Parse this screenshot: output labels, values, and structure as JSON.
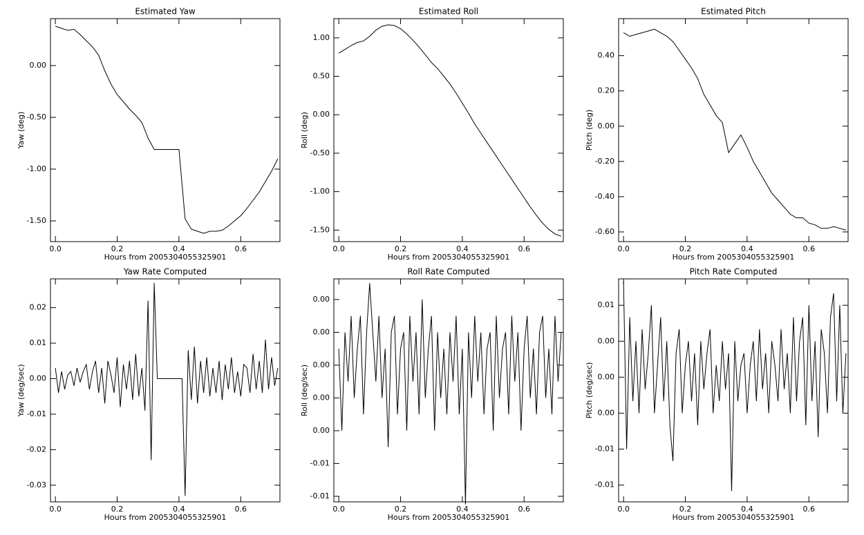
{
  "chart_data": [
    {
      "type": "line",
      "title": "Estimated Yaw",
      "xlabel": "Hours from 2005304055325901",
      "ylabel": "Yaw (deg)",
      "color": "#000000",
      "x": [
        0,
        0.02,
        0.04,
        0.06,
        0.08,
        0.1,
        0.12,
        0.14,
        0.16,
        0.18,
        0.2,
        0.22,
        0.24,
        0.26,
        0.28,
        0.3,
        0.32,
        0.34,
        0.36,
        0.38,
        0.4,
        0.42,
        0.44,
        0.46,
        0.48,
        0.5,
        0.52,
        0.54,
        0.56,
        0.58,
        0.6,
        0.62,
        0.64,
        0.66,
        0.68,
        0.7,
        0.72
      ],
      "values": [
        0.38,
        0.36,
        0.34,
        0.35,
        0.3,
        0.24,
        0.18,
        0.1,
        -0.05,
        -0.18,
        -0.28,
        -0.35,
        -0.42,
        -0.48,
        -0.55,
        -0.7,
        -0.81,
        -0.81,
        -0.81,
        -0.81,
        -0.81,
        -1.48,
        -1.58,
        -1.6,
        -1.62,
        -1.6,
        -1.6,
        -1.59,
        -1.55,
        -1.5,
        -1.45,
        -1.38,
        -1.3,
        -1.22,
        -1.12,
        -1.02,
        -0.9
      ],
      "xlim": [
        -0.016,
        0.727
      ],
      "ylim": [
        -1.7,
        0.453
      ],
      "xticks": [
        {
          "value": 0,
          "label": "0.0"
        },
        0.2,
        0.4,
        0.6
      ],
      "yticks": [
        {
          "value": 0,
          "label": "0.00"
        },
        {
          "value": -0.5,
          "label": "-0.50"
        },
        {
          "value": -1,
          "label": "-1.00"
        },
        {
          "value": -1.5,
          "label": "-1.50"
        }
      ]
    },
    {
      "type": "line",
      "title": "Estimated Roll",
      "xlabel": "Hours from 2005304055325901",
      "ylabel": "Roll (deg)",
      "color": "#000000",
      "x": [
        0,
        0.02,
        0.04,
        0.06,
        0.08,
        0.1,
        0.12,
        0.14,
        0.16,
        0.18,
        0.2,
        0.22,
        0.24,
        0.26,
        0.28,
        0.3,
        0.32,
        0.34,
        0.36,
        0.38,
        0.4,
        0.42,
        0.44,
        0.46,
        0.48,
        0.5,
        0.52,
        0.54,
        0.56,
        0.58,
        0.6,
        0.62,
        0.64,
        0.66,
        0.68,
        0.7,
        0.72
      ],
      "values": [
        0.8,
        0.85,
        0.9,
        0.94,
        0.96,
        1.02,
        1.1,
        1.15,
        1.17,
        1.16,
        1.12,
        1.05,
        0.97,
        0.88,
        0.78,
        0.68,
        0.6,
        0.5,
        0.4,
        0.28,
        0.15,
        0.02,
        -0.12,
        -0.24,
        -0.36,
        -0.48,
        -0.6,
        -0.72,
        -0.84,
        -0.96,
        -1.08,
        -1.2,
        -1.31,
        -1.41,
        -1.49,
        -1.55,
        -1.58
      ],
      "xlim": [
        -0.016,
        0.727
      ],
      "ylim": [
        -1.65,
        1.25
      ],
      "xticks": [
        {
          "value": 0,
          "label": "0.0"
        },
        0.2,
        0.4,
        0.6
      ],
      "yticks": [
        {
          "value": 1,
          "label": "1.00"
        },
        {
          "value": 0.5,
          "label": "0.50"
        },
        {
          "value": 0,
          "label": "0.00"
        },
        {
          "value": -0.5,
          "label": "-0.50"
        },
        {
          "value": -1,
          "label": "-1.00"
        },
        {
          "value": -1.5,
          "label": "-1.50"
        }
      ]
    },
    {
      "type": "line",
      "title": "Estimated Pitch",
      "xlabel": "Hours from 2005304055325901",
      "ylabel": "Pitch (deg)",
      "color": "#000000",
      "x": [
        0,
        0.02,
        0.04,
        0.06,
        0.08,
        0.1,
        0.12,
        0.14,
        0.16,
        0.18,
        0.2,
        0.22,
        0.24,
        0.26,
        0.28,
        0.3,
        0.32,
        0.34,
        0.36,
        0.38,
        0.4,
        0.42,
        0.44,
        0.46,
        0.48,
        0.5,
        0.52,
        0.54,
        0.56,
        0.58,
        0.6,
        0.62,
        0.64,
        0.66,
        0.68,
        0.7,
        0.72
      ],
      "values": [
        0.53,
        0.51,
        0.52,
        0.53,
        0.54,
        0.55,
        0.53,
        0.51,
        0.48,
        0.43,
        0.38,
        0.33,
        0.27,
        0.18,
        0.12,
        0.06,
        0.02,
        -0.15,
        -0.1,
        -0.05,
        -0.12,
        -0.2,
        -0.26,
        -0.32,
        -0.38,
        -0.42,
        -0.46,
        -0.5,
        -0.52,
        -0.52,
        -0.55,
        -0.56,
        -0.58,
        -0.58,
        -0.57,
        -0.58,
        -0.59
      ],
      "xlim": [
        -0.016,
        0.727
      ],
      "ylim": [
        -0.655,
        0.61
      ],
      "xticks": [
        {
          "value": 0,
          "label": "0.0"
        },
        0.2,
        0.4,
        0.6
      ],
      "yticks": [
        {
          "value": 0.4,
          "label": "0.40"
        },
        {
          "value": 0.2,
          "label": "0.20"
        },
        {
          "value": 0,
          "label": "0.00"
        },
        {
          "value": -0.2,
          "label": "-0.20"
        },
        {
          "value": -0.4,
          "label": "-0.40"
        },
        {
          "value": -0.6,
          "label": "-0.60"
        }
      ]
    },
    {
      "type": "line",
      "title": "Yaw Rate Computed",
      "xlabel": "Hours from 2005304055325901",
      "ylabel": "Yaw (deg/sec)",
      "color": "#000000",
      "x": [
        0,
        0.01,
        0.02,
        0.03,
        0.04,
        0.05,
        0.06,
        0.07,
        0.08,
        0.09,
        0.1,
        0.11,
        0.12,
        0.13,
        0.14,
        0.15,
        0.16,
        0.17,
        0.18,
        0.19,
        0.2,
        0.21,
        0.22,
        0.23,
        0.24,
        0.25,
        0.26,
        0.27,
        0.28,
        0.29,
        0.3,
        0.31,
        0.32,
        0.33,
        0.34,
        0.35,
        0.36,
        0.37,
        0.38,
        0.39,
        0.4,
        0.41,
        0.42,
        0.43,
        0.44,
        0.45,
        0.46,
        0.47,
        0.48,
        0.49,
        0.5,
        0.51,
        0.52,
        0.53,
        0.54,
        0.55,
        0.56,
        0.57,
        0.58,
        0.59,
        0.6,
        0.61,
        0.62,
        0.63,
        0.64,
        0.65,
        0.66,
        0.67,
        0.68,
        0.69,
        0.7,
        0.71,
        0.72
      ],
      "values": [
        0.003,
        -0.004,
        0.002,
        -0.003,
        0.001,
        0.002,
        -0.002,
        0.003,
        -0.001,
        0.002,
        0.004,
        -0.003,
        0.002,
        0.005,
        -0.004,
        0.003,
        -0.007,
        0.005,
        0.001,
        -0.004,
        0.006,
        -0.008,
        0.004,
        -0.003,
        0.005,
        -0.006,
        0.007,
        -0.005,
        0.003,
        -0.009,
        0.022,
        -0.023,
        0.027,
        0,
        0,
        0,
        0,
        0,
        0,
        0,
        0,
        0,
        -0.033,
        0.008,
        -0.006,
        0.009,
        -0.007,
        0.005,
        -0.004,
        0.006,
        -0.005,
        0.003,
        -0.004,
        0.005,
        -0.006,
        0.004,
        -0.003,
        0.006,
        -0.004,
        0.002,
        -0.005,
        0.004,
        0.003,
        -0.004,
        0.007,
        -0.003,
        0.005,
        -0.004,
        0.011,
        -0.003,
        0.006,
        -0.002,
        0.003
      ],
      "xlim": [
        -0.016,
        0.727
      ],
      "ylim": [
        -0.0347,
        0.0281
      ],
      "xticks": [
        {
          "value": 0,
          "label": "0.0"
        },
        0.2,
        0.4,
        0.6
      ],
      "yticks": [
        0.02,
        0.01,
        {
          "value": 0,
          "label": "0.00"
        },
        -0.01,
        -0.02,
        -0.03
      ]
    },
    {
      "type": "line",
      "title": "Roll Rate Computed",
      "xlabel": "Hours from 2005304055325901",
      "ylabel": "Roll (deg/sec)",
      "color": "#000000",
      "x": [
        0,
        0.01,
        0.02,
        0.03,
        0.04,
        0.05,
        0.06,
        0.07,
        0.08,
        0.09,
        0.1,
        0.11,
        0.12,
        0.13,
        0.14,
        0.15,
        0.16,
        0.17,
        0.18,
        0.19,
        0.2,
        0.21,
        0.22,
        0.23,
        0.24,
        0.25,
        0.26,
        0.27,
        0.28,
        0.29,
        0.3,
        0.31,
        0.32,
        0.33,
        0.34,
        0.35,
        0.36,
        0.37,
        0.38,
        0.39,
        0.4,
        0.41,
        0.42,
        0.43,
        0.44,
        0.45,
        0.46,
        0.47,
        0.48,
        0.49,
        0.5,
        0.51,
        0.52,
        0.53,
        0.54,
        0.55,
        0.56,
        0.57,
        0.58,
        0.59,
        0.6,
        0.61,
        0.62,
        0.63,
        0.64,
        0.65,
        0.66,
        0.67,
        0.68,
        0.69,
        0.7,
        0.71,
        0.72
      ],
      "values": [
        0.001,
        -0.004,
        0.002,
        -0.001,
        0.003,
        -0.002,
        0.001,
        0.003,
        -0.003,
        0.002,
        0.005,
        0.002,
        -0.001,
        0.003,
        -0.002,
        0.001,
        -0.005,
        0.002,
        0.003,
        -0.003,
        0.001,
        0.002,
        -0.004,
        0.003,
        -0.001,
        0.002,
        -0.003,
        0.004,
        -0.002,
        0.001,
        0.003,
        -0.004,
        0.002,
        -0.002,
        0.001,
        -0.003,
        0.002,
        -0.001,
        0.003,
        -0.003,
        0.001,
        -0.0085,
        0.002,
        -0.002,
        0.003,
        -0.001,
        0.002,
        -0.003,
        0.001,
        0.002,
        -0.004,
        0.003,
        -0.002,
        0.001,
        0.002,
        -0.003,
        0.003,
        -0.001,
        0.002,
        -0.004,
        0.001,
        0.003,
        -0.002,
        0.001,
        -0.003,
        0.002,
        0.003,
        -0.002,
        0.001,
        -0.003,
        0.003,
        -0.001,
        0.002
      ],
      "xlim": [
        -0.016,
        0.727
      ],
      "ylim": [
        -0.00834,
        0.00526
      ],
      "xticks": [
        {
          "value": 0,
          "label": "0.0"
        },
        0.2,
        0.4,
        0.6
      ],
      "yticks": [
        {
          "value": 0.004,
          "label": "0.00"
        },
        {
          "value": 0.002,
          "label": "0.00"
        },
        {
          "value": 0,
          "label": "0.00"
        },
        {
          "value": -0.002,
          "label": "0.00"
        },
        {
          "value": -0.004,
          "label": "0.00"
        },
        {
          "value": -0.006,
          "label": "-0.01"
        },
        {
          "value": -0.008,
          "label": "-0.01"
        }
      ]
    },
    {
      "type": "line",
      "title": "Pitch Rate Computed",
      "xlabel": "Hours from 2005304055325901",
      "ylabel": "Pitch (deg/sec)",
      "color": "#000000",
      "x": [
        0,
        0.01,
        0.02,
        0.03,
        0.04,
        0.05,
        0.06,
        0.07,
        0.08,
        0.09,
        0.1,
        0.11,
        0.12,
        0.13,
        0.14,
        0.15,
        0.16,
        0.17,
        0.18,
        0.19,
        0.2,
        0.21,
        0.22,
        0.23,
        0.24,
        0.25,
        0.26,
        0.27,
        0.28,
        0.29,
        0.3,
        0.31,
        0.32,
        0.33,
        0.34,
        0.35,
        0.36,
        0.37,
        0.38,
        0.39,
        0.4,
        0.41,
        0.42,
        0.43,
        0.44,
        0.45,
        0.46,
        0.47,
        0.48,
        0.49,
        0.5,
        0.51,
        0.52,
        0.53,
        0.54,
        0.55,
        0.56,
        0.57,
        0.58,
        0.59,
        0.6,
        0.61,
        0.62,
        0.63,
        0.64,
        0.65,
        0.66,
        0.67,
        0.68,
        0.69,
        0.7,
        0.71,
        0.72
      ],
      "values": [
        0.008,
        -0.006,
        0.005,
        -0.002,
        0.003,
        -0.003,
        0.004,
        -0.001,
        0.002,
        0.006,
        -0.003,
        0.001,
        0.005,
        -0.002,
        0.003,
        -0.004,
        -0.007,
        0.002,
        0.004,
        -0.003,
        0.001,
        0.003,
        -0.002,
        0.002,
        -0.004,
        0.003,
        -0.001,
        0.002,
        0.004,
        -0.003,
        0.001,
        -0.002,
        0.003,
        -0.001,
        0.002,
        -0.0095,
        0.003,
        -0.002,
        0.001,
        0.002,
        -0.003,
        0.001,
        0.003,
        -0.002,
        0.004,
        -0.001,
        0.002,
        -0.003,
        0.003,
        0.001,
        -0.002,
        0.004,
        -0.001,
        0.002,
        -0.003,
        0.005,
        -0.002,
        0.003,
        0.005,
        -0.004,
        0.006,
        -0.002,
        0.003,
        -0.005,
        0.004,
        0.002,
        -0.003,
        0.005,
        0.007,
        -0.002,
        0.006,
        -0.003,
        0.002
      ],
      "xlim": [
        -0.016,
        0.727
      ],
      "ylim": [
        -0.0104,
        0.0082
      ],
      "xticks": [
        {
          "value": 0,
          "label": "0.0"
        },
        0.2,
        0.4,
        0.6
      ],
      "yticks": [
        {
          "value": 0.006,
          "label": "0.01"
        },
        {
          "value": 0.003,
          "label": "0.00"
        },
        {
          "value": 0,
          "label": "0.00"
        },
        {
          "value": -0.003,
          "label": "0.00"
        },
        {
          "value": -0.006,
          "label": "-0.01"
        },
        {
          "value": -0.009,
          "label": "-0.01"
        }
      ]
    }
  ]
}
